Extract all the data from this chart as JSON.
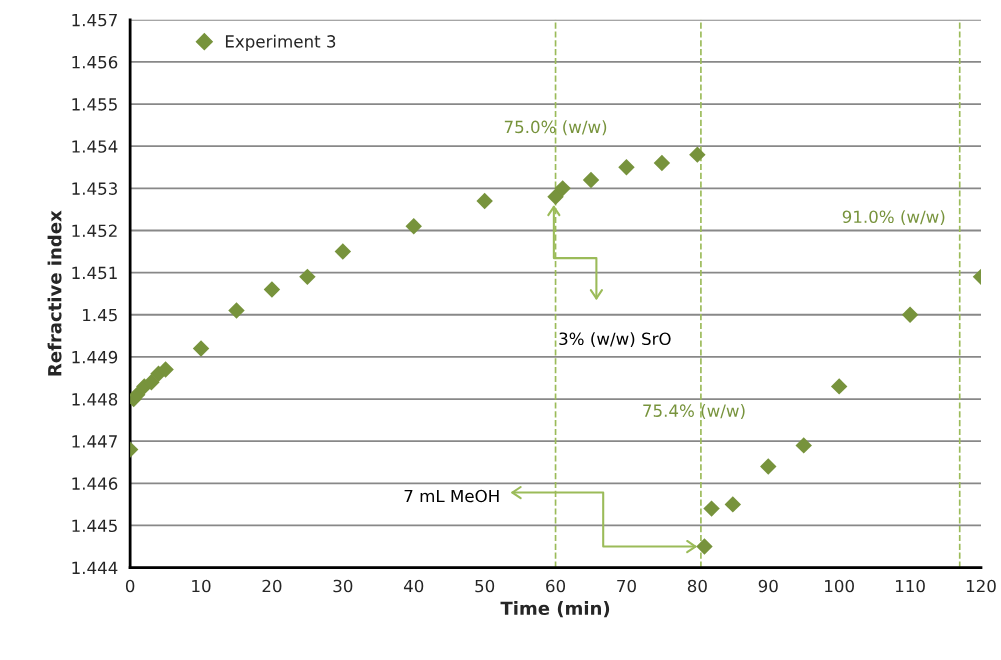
{
  "chart_data": {
    "type": "scatter",
    "xlabel": "Time (min)",
    "ylabel": "Refractive index",
    "x": [
      0,
      0.5,
      1,
      2,
      3,
      4,
      5,
      10,
      15,
      20,
      25,
      30,
      40,
      50,
      60,
      61,
      65,
      70,
      75,
      80,
      81,
      82,
      85,
      90,
      95,
      100,
      110,
      120
    ],
    "series": [
      {
        "name": "Experiment 3",
        "color": "#77933c",
        "values": [
          1.4468,
          1.448,
          1.4481,
          1.4483,
          1.4484,
          1.4486,
          1.4487,
          1.4492,
          1.4501,
          1.4506,
          1.4509,
          1.4515,
          1.4521,
          1.4527,
          1.4528,
          1.453,
          1.4532,
          1.4535,
          1.4536,
          1.4538,
          1.4445,
          1.4454,
          1.4455,
          1.4464,
          1.4469,
          1.4483,
          1.45,
          1.4509
        ]
      }
    ],
    "marker": "diamond",
    "legend": "top left",
    "grid": "y",
    "xlim": [
      0,
      120
    ],
    "xticks": [
      0,
      10,
      20,
      30,
      40,
      50,
      60,
      70,
      80,
      90,
      100,
      110,
      120
    ],
    "ylim": [
      1.444,
      1.457
    ],
    "yticks": [
      1.444,
      1.445,
      1.446,
      1.447,
      1.448,
      1.449,
      1.45,
      1.451,
      1.452,
      1.453,
      1.454,
      1.455,
      1.456,
      1.457
    ],
    "ref_lines": [
      {
        "axis": "x",
        "value": 60,
        "color": "#9bbb59",
        "line_style": "dashed"
      },
      {
        "axis": "x",
        "value": 80.5,
        "color": "#9bbb59",
        "line_style": "dashed"
      },
      {
        "axis": "x",
        "value": 117,
        "color": "#9bbb59",
        "line_style": "dashed"
      }
    ],
    "annotations": [
      {
        "text": "75.0% (w/w)",
        "x": 60,
        "y": 1.4541
      },
      {
        "text": "91.0% (w/w)",
        "x": 117,
        "y": 1.4521
      },
      {
        "text": "75.4% (w/w)",
        "x": 80.5,
        "y": 1.4473
      },
      "3% (w/w) SrO",
      {
        "text": "7 mL MeOH",
        "x": 80,
        "y": 1.4445
      }
    ]
  }
}
